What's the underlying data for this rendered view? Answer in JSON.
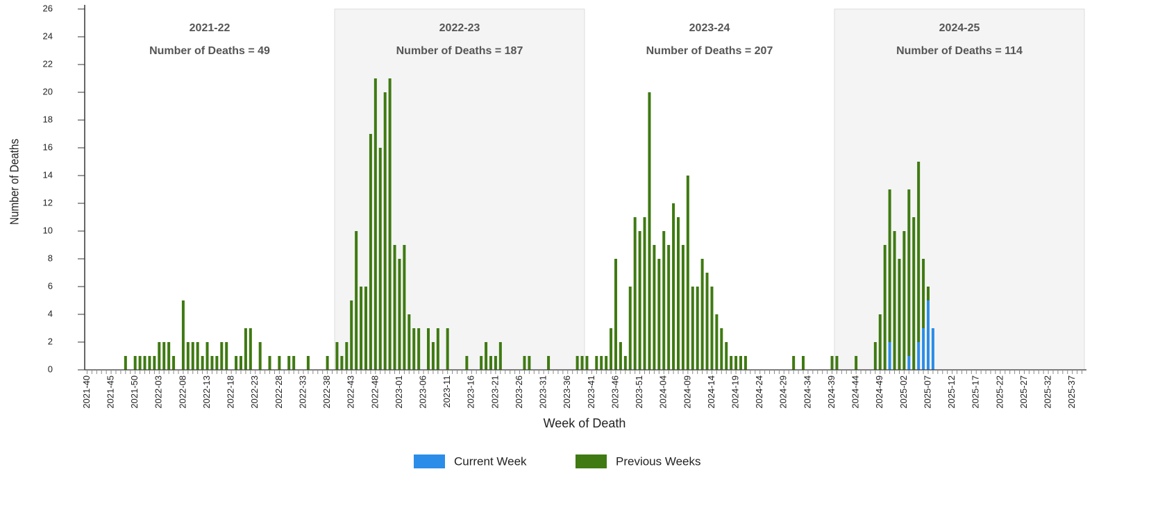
{
  "chart_data": {
    "type": "bar",
    "stacked": true,
    "xlabel": "Week of Death",
    "ylabel": "Number of Deaths",
    "ylim": [
      0,
      26
    ],
    "yticks": [
      0,
      2,
      4,
      6,
      8,
      10,
      12,
      14,
      16,
      18,
      20,
      22,
      24,
      26
    ],
    "grid": false,
    "legend": "bottom",
    "seasons": [
      {
        "label": "2021-22",
        "deaths_label": "Number of Deaths = 49",
        "shaded": false
      },
      {
        "label": "2022-23",
        "deaths_label": "Number of Deaths = 187",
        "shaded": true
      },
      {
        "label": "2023-24",
        "deaths_label": "Number of Deaths = 207",
        "shaded": false
      },
      {
        "label": "2024-25",
        "deaths_label": "Number of Deaths = 114",
        "shaded": true
      }
    ],
    "categories": [
      "2021-40",
      null,
      null,
      null,
      null,
      "2021-45",
      null,
      null,
      null,
      null,
      "2021-50",
      null,
      null,
      null,
      null,
      "2022-03",
      null,
      null,
      null,
      null,
      "2022-08",
      null,
      null,
      null,
      null,
      "2022-13",
      null,
      null,
      null,
      null,
      "2022-18",
      null,
      null,
      null,
      null,
      "2022-23",
      null,
      null,
      null,
      null,
      "2022-28",
      null,
      null,
      null,
      null,
      "2022-33",
      null,
      null,
      null,
      null,
      "2022-38",
      null,
      null,
      null,
      null,
      "2022-43",
      null,
      null,
      null,
      null,
      "2022-48",
      null,
      null,
      null,
      null,
      "2023-01",
      null,
      null,
      null,
      null,
      "2023-06",
      null,
      null,
      null,
      null,
      "2023-11",
      null,
      null,
      null,
      null,
      "2023-16",
      null,
      null,
      null,
      null,
      "2023-21",
      null,
      null,
      null,
      null,
      "2023-26",
      null,
      null,
      null,
      null,
      "2023-31",
      null,
      null,
      null,
      null,
      "2023-36",
      null,
      null,
      null,
      null,
      "2023-41",
      null,
      null,
      null,
      null,
      "2023-46",
      null,
      null,
      null,
      null,
      "2023-51",
      null,
      null,
      null,
      null,
      "2024-04",
      null,
      null,
      null,
      null,
      "2024-09",
      null,
      null,
      null,
      null,
      "2024-14",
      null,
      null,
      null,
      null,
      "2024-19",
      null,
      null,
      null,
      null,
      "2024-24",
      null,
      null,
      null,
      null,
      "2024-29",
      null,
      null,
      null,
      null,
      "2024-34",
      null,
      null,
      null,
      null,
      "2024-39",
      null,
      null,
      null,
      null,
      "2024-44",
      null,
      null,
      null,
      null,
      "2024-49",
      null,
      null,
      null,
      null,
      "2025-02",
      null,
      null,
      null,
      null,
      "2025-07",
      null,
      null,
      null,
      null,
      "2025-12",
      null,
      null,
      null,
      null,
      "2025-17",
      null,
      null,
      null,
      null,
      "2025-22",
      null,
      null,
      null,
      null,
      "2025-27",
      null,
      null,
      null,
      null,
      "2025-32",
      null,
      null,
      null,
      null,
      "2025-37",
      null,
      null
    ],
    "series": [
      {
        "name": "Current Week",
        "color": "#2b8de8",
        "values": [
          0,
          0,
          0,
          0,
          0,
          0,
          0,
          0,
          0,
          0,
          0,
          0,
          0,
          0,
          0,
          0,
          0,
          0,
          0,
          0,
          0,
          0,
          0,
          0,
          0,
          0,
          0,
          0,
          0,
          0,
          0,
          0,
          0,
          0,
          0,
          0,
          0,
          0,
          0,
          0,
          0,
          0,
          0,
          0,
          0,
          0,
          0,
          0,
          0,
          0,
          0,
          0,
          0,
          0,
          0,
          0,
          0,
          0,
          0,
          0,
          0,
          0,
          0,
          0,
          0,
          0,
          0,
          0,
          0,
          0,
          0,
          0,
          0,
          0,
          0,
          0,
          0,
          0,
          0,
          0,
          0,
          0,
          0,
          0,
          0,
          0,
          0,
          0,
          0,
          0,
          0,
          0,
          0,
          0,
          0,
          0,
          0,
          0,
          0,
          0,
          0,
          0,
          0,
          0,
          0,
          0,
          0,
          0,
          0,
          0,
          0,
          0,
          0,
          0,
          0,
          0,
          0,
          0,
          0,
          0,
          0,
          0,
          0,
          0,
          0,
          0,
          0,
          0,
          0,
          0,
          0,
          0,
          0,
          0,
          0,
          0,
          0,
          0,
          0,
          0,
          0,
          0,
          0,
          0,
          0,
          0,
          0,
          0,
          0,
          0,
          0,
          0,
          0,
          0,
          0,
          0,
          0,
          0,
          0,
          0,
          0,
          0,
          0,
          0,
          0,
          0,
          0,
          2,
          0,
          0,
          0,
          1,
          0,
          2,
          3,
          5,
          3,
          0,
          0,
          0,
          0,
          0,
          0,
          0,
          0,
          0,
          0,
          0,
          0,
          0,
          0,
          0,
          0,
          0,
          0,
          0,
          0,
          0,
          0,
          0,
          0,
          0,
          0,
          0,
          0,
          0,
          0,
          0
        ]
      },
      {
        "name": "Previous Weeks",
        "color": "#3f7a12",
        "values": [
          0,
          0,
          0,
          0,
          0,
          0,
          0,
          0,
          1,
          0,
          1,
          1,
          1,
          1,
          1,
          2,
          2,
          2,
          1,
          0,
          5,
          2,
          2,
          2,
          1,
          2,
          1,
          1,
          2,
          2,
          0,
          1,
          1,
          3,
          3,
          0,
          2,
          0,
          1,
          0,
          1,
          0,
          1,
          1,
          0,
          0,
          1,
          0,
          0,
          0,
          1,
          0,
          2,
          1,
          2,
          5,
          10,
          6,
          6,
          17,
          21,
          16,
          20,
          21,
          9,
          8,
          9,
          4,
          3,
          3,
          0,
          3,
          2,
          3,
          0,
          3,
          0,
          0,
          0,
          1,
          0,
          0,
          1,
          2,
          1,
          1,
          2,
          0,
          0,
          0,
          0,
          1,
          1,
          0,
          0,
          0,
          1,
          0,
          0,
          0,
          0,
          0,
          1,
          1,
          1,
          0,
          1,
          1,
          1,
          3,
          8,
          2,
          1,
          6,
          11,
          10,
          11,
          20,
          9,
          8,
          10,
          9,
          12,
          11,
          9,
          14,
          6,
          6,
          8,
          7,
          6,
          4,
          3,
          2,
          1,
          1,
          1,
          1,
          0,
          0,
          0,
          0,
          0,
          0,
          0,
          0,
          0,
          1,
          0,
          1,
          0,
          0,
          0,
          0,
          0,
          1,
          1,
          0,
          0,
          0,
          1,
          0,
          0,
          0,
          2,
          4,
          9,
          11,
          10,
          8,
          10,
          12,
          11,
          13,
          5,
          1,
          0,
          0,
          0,
          0,
          0,
          0,
          0,
          0,
          0,
          0,
          0,
          0,
          0,
          0,
          0,
          0,
          0,
          0,
          0,
          0,
          0,
          0,
          0,
          0,
          0,
          0,
          0,
          0,
          0,
          0,
          0,
          0
        ]
      }
    ]
  }
}
